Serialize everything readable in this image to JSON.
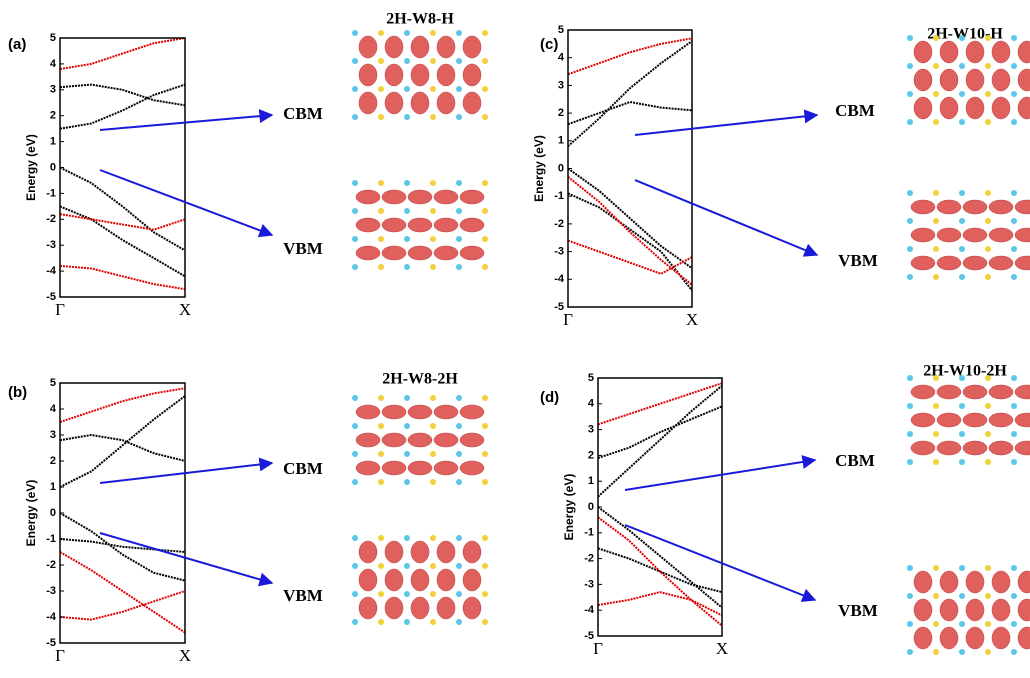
{
  "chart_data": [
    {
      "type": "line",
      "panel_label": "(a)",
      "title": "2H-W8-H",
      "ylabel": "Energy (eV)",
      "annotations": [
        "CBM",
        "VBM"
      ],
      "xlim": [
        0,
        1
      ],
      "xticks": [
        {
          "value": 0,
          "label": "Γ"
        },
        {
          "value": 1,
          "label": "X"
        }
      ],
      "ylim": [
        -5,
        5
      ],
      "yticks": [
        -5,
        -4,
        -3,
        -2,
        -1,
        0,
        1,
        2,
        3,
        4,
        5
      ],
      "x": [
        0,
        0.25,
        0.5,
        0.75,
        1
      ],
      "series": [
        {
          "color": "#000000",
          "values": [
            1.5,
            1.7,
            2.2,
            2.8,
            3.2
          ]
        },
        {
          "color": "#000000",
          "values": [
            3.1,
            3.2,
            3.0,
            2.6,
            2.4
          ]
        },
        {
          "color": "#000000",
          "values": [
            0,
            -0.6,
            -1.5,
            -2.5,
            -3.2
          ]
        },
        {
          "color": "#000000",
          "values": [
            -1.5,
            -2.0,
            -2.8,
            -3.5,
            -4.2
          ]
        },
        {
          "color": "#e00000",
          "values": [
            -1.8,
            -2.0,
            -2.2,
            -2.4,
            -2.0
          ]
        },
        {
          "color": "#e00000",
          "values": [
            3.8,
            4.0,
            4.4,
            4.8,
            5.0
          ]
        },
        {
          "color": "#e00000",
          "values": [
            -3.8,
            -3.9,
            -4.2,
            -4.5,
            -4.7
          ]
        }
      ]
    },
    {
      "type": "line",
      "panel_label": "(b)",
      "title": "2H-W8-2H",
      "ylabel": "Energy (eV)",
      "annotations": [
        "CBM",
        "VBM"
      ],
      "xlim": [
        0,
        1
      ],
      "xticks": [
        {
          "value": 0,
          "label": "Γ"
        },
        {
          "value": 1,
          "label": "X"
        }
      ],
      "ylim": [
        -5,
        5
      ],
      "yticks": [
        -5,
        -4,
        -3,
        -2,
        -1,
        0,
        1,
        2,
        3,
        4,
        5
      ],
      "x": [
        0,
        0.25,
        0.5,
        0.75,
        1
      ],
      "series": [
        {
          "color": "#000000",
          "values": [
            1.0,
            1.6,
            2.6,
            3.6,
            4.5
          ]
        },
        {
          "color": "#000000",
          "values": [
            2.8,
            3.0,
            2.8,
            2.3,
            2.0
          ]
        },
        {
          "color": "#000000",
          "values": [
            0,
            -0.7,
            -1.6,
            -2.3,
            -2.6
          ]
        },
        {
          "color": "#000000",
          "values": [
            -1.0,
            -1.1,
            -1.3,
            -1.4,
            -1.5
          ]
        },
        {
          "color": "#e00000",
          "values": [
            -1.5,
            -2.2,
            -3.0,
            -3.8,
            -4.6
          ]
        },
        {
          "color": "#e00000",
          "values": [
            3.5,
            3.9,
            4.3,
            4.6,
            4.8
          ]
        },
        {
          "color": "#e00000",
          "values": [
            -4.0,
            -4.1,
            -3.8,
            -3.4,
            -3.0
          ]
        }
      ]
    },
    {
      "type": "line",
      "panel_label": "(c)",
      "title": "2H-W10-H",
      "ylabel": "Energy (eV)",
      "annotations": [
        "CBM",
        "VBM"
      ],
      "xlim": [
        0,
        1
      ],
      "xticks": [
        {
          "value": 0,
          "label": "Γ"
        },
        {
          "value": 1,
          "label": "X"
        }
      ],
      "ylim": [
        -5,
        5
      ],
      "yticks": [
        -5,
        -4,
        -3,
        -2,
        -1,
        0,
        1,
        2,
        3,
        4,
        5
      ],
      "x": [
        0,
        0.25,
        0.5,
        0.75,
        1
      ],
      "series": [
        {
          "color": "#000000",
          "values": [
            0.8,
            1.8,
            2.9,
            3.8,
            4.6
          ]
        },
        {
          "color": "#000000",
          "values": [
            1.6,
            2.0,
            2.4,
            2.2,
            2.1
          ]
        },
        {
          "color": "#000000",
          "values": [
            0,
            -0.8,
            -1.8,
            -2.8,
            -3.6
          ]
        },
        {
          "color": "#000000",
          "values": [
            -0.9,
            -1.4,
            -2.2,
            -3.0,
            -4.4
          ]
        },
        {
          "color": "#e00000",
          "values": [
            -0.3,
            -1.2,
            -2.3,
            -3.3,
            -4.2
          ]
        },
        {
          "color": "#e00000",
          "values": [
            3.4,
            3.8,
            4.2,
            4.5,
            4.7
          ]
        },
        {
          "color": "#e00000",
          "values": [
            -2.6,
            -3.0,
            -3.4,
            -3.8,
            -3.2
          ]
        }
      ]
    },
    {
      "type": "line",
      "panel_label": "(d)",
      "title": "2H-W10-2H",
      "ylabel": "Energy (eV)",
      "annotations": [
        "CBM",
        "VBM"
      ],
      "xlim": [
        0,
        1
      ],
      "xticks": [
        {
          "value": 0,
          "label": "Γ"
        },
        {
          "value": 1,
          "label": "X"
        }
      ],
      "ylim": [
        -5,
        5
      ],
      "yticks": [
        -5,
        -4,
        -3,
        -2,
        -1,
        0,
        1,
        2,
        3,
        4,
        5
      ],
      "x": [
        0,
        0.25,
        0.5,
        0.75,
        1
      ],
      "series": [
        {
          "color": "#000000",
          "values": [
            0.4,
            1.5,
            2.6,
            3.7,
            4.7
          ]
        },
        {
          "color": "#000000",
          "values": [
            1.9,
            2.3,
            2.9,
            3.4,
            3.9
          ]
        },
        {
          "color": "#000000",
          "values": [
            0,
            -0.9,
            -1.9,
            -2.9,
            -3.9
          ]
        },
        {
          "color": "#000000",
          "values": [
            -1.6,
            -2.0,
            -2.5,
            -3.0,
            -3.3
          ]
        },
        {
          "color": "#e00000",
          "values": [
            -0.4,
            -1.3,
            -2.5,
            -3.6,
            -4.6
          ]
        },
        {
          "color": "#e00000",
          "values": [
            3.2,
            3.6,
            4.0,
            4.4,
            4.8
          ]
        },
        {
          "color": "#e00000",
          "values": [
            -3.8,
            -3.6,
            -3.3,
            -3.6,
            -4.2
          ]
        }
      ]
    }
  ]
}
